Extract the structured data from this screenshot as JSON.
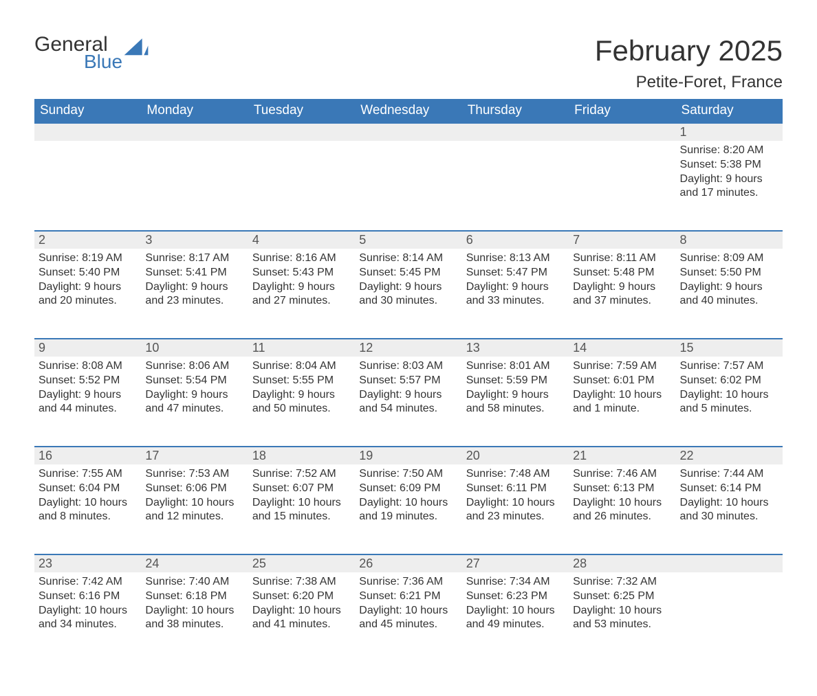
{
  "brand": {
    "word1": "General",
    "word2": "Blue",
    "word1_color": "#333333",
    "word2_color": "#3a78b7",
    "sail_color": "#3a78b7"
  },
  "title": {
    "month_year": "February 2025",
    "location": "Petite-Foret, France",
    "text_color": "#333333",
    "title_fontsize": 42,
    "location_fontsize": 24
  },
  "calendar": {
    "header_bg": "#3a78b7",
    "header_fg": "#ffffff",
    "daybar_bg": "#eeeeee",
    "daybar_border": "#3a78b7",
    "text_color": "#333333",
    "day_headers": [
      "Sunday",
      "Monday",
      "Tuesday",
      "Wednesday",
      "Thursday",
      "Friday",
      "Saturday"
    ],
    "weeks": [
      [
        null,
        null,
        null,
        null,
        null,
        null,
        {
          "n": "1",
          "sunrise": "Sunrise: 8:20 AM",
          "sunset": "Sunset: 5:38 PM",
          "daylight1": "Daylight: 9 hours",
          "daylight2": "and 17 minutes."
        }
      ],
      [
        {
          "n": "2",
          "sunrise": "Sunrise: 8:19 AM",
          "sunset": "Sunset: 5:40 PM",
          "daylight1": "Daylight: 9 hours",
          "daylight2": "and 20 minutes."
        },
        {
          "n": "3",
          "sunrise": "Sunrise: 8:17 AM",
          "sunset": "Sunset: 5:41 PM",
          "daylight1": "Daylight: 9 hours",
          "daylight2": "and 23 minutes."
        },
        {
          "n": "4",
          "sunrise": "Sunrise: 8:16 AM",
          "sunset": "Sunset: 5:43 PM",
          "daylight1": "Daylight: 9 hours",
          "daylight2": "and 27 minutes."
        },
        {
          "n": "5",
          "sunrise": "Sunrise: 8:14 AM",
          "sunset": "Sunset: 5:45 PM",
          "daylight1": "Daylight: 9 hours",
          "daylight2": "and 30 minutes."
        },
        {
          "n": "6",
          "sunrise": "Sunrise: 8:13 AM",
          "sunset": "Sunset: 5:47 PM",
          "daylight1": "Daylight: 9 hours",
          "daylight2": "and 33 minutes."
        },
        {
          "n": "7",
          "sunrise": "Sunrise: 8:11 AM",
          "sunset": "Sunset: 5:48 PM",
          "daylight1": "Daylight: 9 hours",
          "daylight2": "and 37 minutes."
        },
        {
          "n": "8",
          "sunrise": "Sunrise: 8:09 AM",
          "sunset": "Sunset: 5:50 PM",
          "daylight1": "Daylight: 9 hours",
          "daylight2": "and 40 minutes."
        }
      ],
      [
        {
          "n": "9",
          "sunrise": "Sunrise: 8:08 AM",
          "sunset": "Sunset: 5:52 PM",
          "daylight1": "Daylight: 9 hours",
          "daylight2": "and 44 minutes."
        },
        {
          "n": "10",
          "sunrise": "Sunrise: 8:06 AM",
          "sunset": "Sunset: 5:54 PM",
          "daylight1": "Daylight: 9 hours",
          "daylight2": "and 47 minutes."
        },
        {
          "n": "11",
          "sunrise": "Sunrise: 8:04 AM",
          "sunset": "Sunset: 5:55 PM",
          "daylight1": "Daylight: 9 hours",
          "daylight2": "and 50 minutes."
        },
        {
          "n": "12",
          "sunrise": "Sunrise: 8:03 AM",
          "sunset": "Sunset: 5:57 PM",
          "daylight1": "Daylight: 9 hours",
          "daylight2": "and 54 minutes."
        },
        {
          "n": "13",
          "sunrise": "Sunrise: 8:01 AM",
          "sunset": "Sunset: 5:59 PM",
          "daylight1": "Daylight: 9 hours",
          "daylight2": "and 58 minutes."
        },
        {
          "n": "14",
          "sunrise": "Sunrise: 7:59 AM",
          "sunset": "Sunset: 6:01 PM",
          "daylight1": "Daylight: 10 hours",
          "daylight2": "and 1 minute."
        },
        {
          "n": "15",
          "sunrise": "Sunrise: 7:57 AM",
          "sunset": "Sunset: 6:02 PM",
          "daylight1": "Daylight: 10 hours",
          "daylight2": "and 5 minutes."
        }
      ],
      [
        {
          "n": "16",
          "sunrise": "Sunrise: 7:55 AM",
          "sunset": "Sunset: 6:04 PM",
          "daylight1": "Daylight: 10 hours",
          "daylight2": "and 8 minutes."
        },
        {
          "n": "17",
          "sunrise": "Sunrise: 7:53 AM",
          "sunset": "Sunset: 6:06 PM",
          "daylight1": "Daylight: 10 hours",
          "daylight2": "and 12 minutes."
        },
        {
          "n": "18",
          "sunrise": "Sunrise: 7:52 AM",
          "sunset": "Sunset: 6:07 PM",
          "daylight1": "Daylight: 10 hours",
          "daylight2": "and 15 minutes."
        },
        {
          "n": "19",
          "sunrise": "Sunrise: 7:50 AM",
          "sunset": "Sunset: 6:09 PM",
          "daylight1": "Daylight: 10 hours",
          "daylight2": "and 19 minutes."
        },
        {
          "n": "20",
          "sunrise": "Sunrise: 7:48 AM",
          "sunset": "Sunset: 6:11 PM",
          "daylight1": "Daylight: 10 hours",
          "daylight2": "and 23 minutes."
        },
        {
          "n": "21",
          "sunrise": "Sunrise: 7:46 AM",
          "sunset": "Sunset: 6:13 PM",
          "daylight1": "Daylight: 10 hours",
          "daylight2": "and 26 minutes."
        },
        {
          "n": "22",
          "sunrise": "Sunrise: 7:44 AM",
          "sunset": "Sunset: 6:14 PM",
          "daylight1": "Daylight: 10 hours",
          "daylight2": "and 30 minutes."
        }
      ],
      [
        {
          "n": "23",
          "sunrise": "Sunrise: 7:42 AM",
          "sunset": "Sunset: 6:16 PM",
          "daylight1": "Daylight: 10 hours",
          "daylight2": "and 34 minutes."
        },
        {
          "n": "24",
          "sunrise": "Sunrise: 7:40 AM",
          "sunset": "Sunset: 6:18 PM",
          "daylight1": "Daylight: 10 hours",
          "daylight2": "and 38 minutes."
        },
        {
          "n": "25",
          "sunrise": "Sunrise: 7:38 AM",
          "sunset": "Sunset: 6:20 PM",
          "daylight1": "Daylight: 10 hours",
          "daylight2": "and 41 minutes."
        },
        {
          "n": "26",
          "sunrise": "Sunrise: 7:36 AM",
          "sunset": "Sunset: 6:21 PM",
          "daylight1": "Daylight: 10 hours",
          "daylight2": "and 45 minutes."
        },
        {
          "n": "27",
          "sunrise": "Sunrise: 7:34 AM",
          "sunset": "Sunset: 6:23 PM",
          "daylight1": "Daylight: 10 hours",
          "daylight2": "and 49 minutes."
        },
        {
          "n": "28",
          "sunrise": "Sunrise: 7:32 AM",
          "sunset": "Sunset: 6:25 PM",
          "daylight1": "Daylight: 10 hours",
          "daylight2": "and 53 minutes."
        },
        null
      ]
    ]
  }
}
